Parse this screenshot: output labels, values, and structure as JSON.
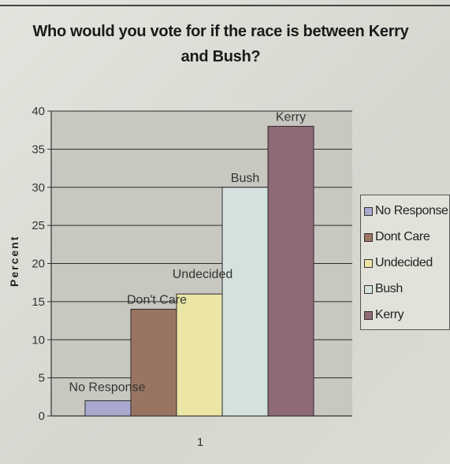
{
  "chart_data": {
    "type": "bar",
    "title": "Who would you vote for if the race is between Kerry and Bush?",
    "ylabel": "Percent",
    "xlabel": "",
    "categories": [
      "1"
    ],
    "series": [
      {
        "name": "No Response",
        "values": [
          2
        ],
        "color": "#a9a9cf"
      },
      {
        "name": "Dont Care",
        "values": [
          14
        ],
        "color": "#9a7463"
      },
      {
        "name": "Undecided",
        "values": [
          16
        ],
        "color": "#ebe6a6"
      },
      {
        "name": "Bush",
        "values": [
          30
        ],
        "color": "#d4e1de"
      },
      {
        "name": "Kerry",
        "values": [
          38
        ],
        "color": "#8e6a75"
      }
    ],
    "data_labels": [
      "No Response",
      "Don't Care",
      "Undecided",
      "Bush",
      "Kerry"
    ],
    "ylim": [
      0,
      40
    ],
    "yticks": [
      0,
      5,
      10,
      15,
      20,
      25,
      30,
      35,
      40
    ],
    "grid": true,
    "plot_background": "#c8c8c0",
    "legend": "right"
  }
}
